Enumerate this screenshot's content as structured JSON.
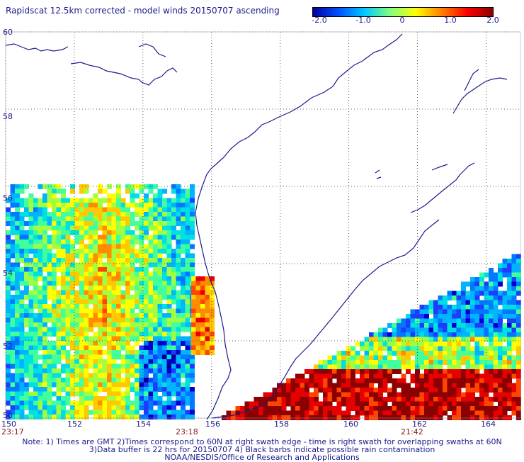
{
  "title": "Rapidscat 12.5km corrected - model winds 20150707 ascending",
  "colorbar": {
    "ticks": [
      "-2.0",
      "-1.0",
      "0",
      "1.0",
      "2.0"
    ],
    "colors": [
      "#0000a0",
      "#0050ff",
      "#00c8ff",
      "#80ff80",
      "#ffff00",
      "#ff8000",
      "#ff0000",
      "#8b0000"
    ]
  },
  "latitude_labels": [
    "60",
    "58",
    "56",
    "54",
    "52",
    "50"
  ],
  "longitude_labels": [
    "150",
    "152",
    "154",
    "156",
    "158",
    "160",
    "162",
    "164"
  ],
  "swath_times": [
    "23:17",
    "23:18",
    "21:42"
  ],
  "notes": [
    "Note: 1) Times are GMT 2)Times correspond to 60N at right swath edge - time is right swath for overlapping swaths at 60N",
    "3)Data buffer is 22 hrs for 20150707 4) Black barbs indicate possible rain contamination",
    "NOAA/NESDIS/Office of Research and Applications"
  ],
  "map": {
    "lat_range": [
      50,
      60
    ],
    "lon_range": [
      150,
      165
    ],
    "grid": "dotted",
    "coastline_color": "#1a1a8c"
  }
}
